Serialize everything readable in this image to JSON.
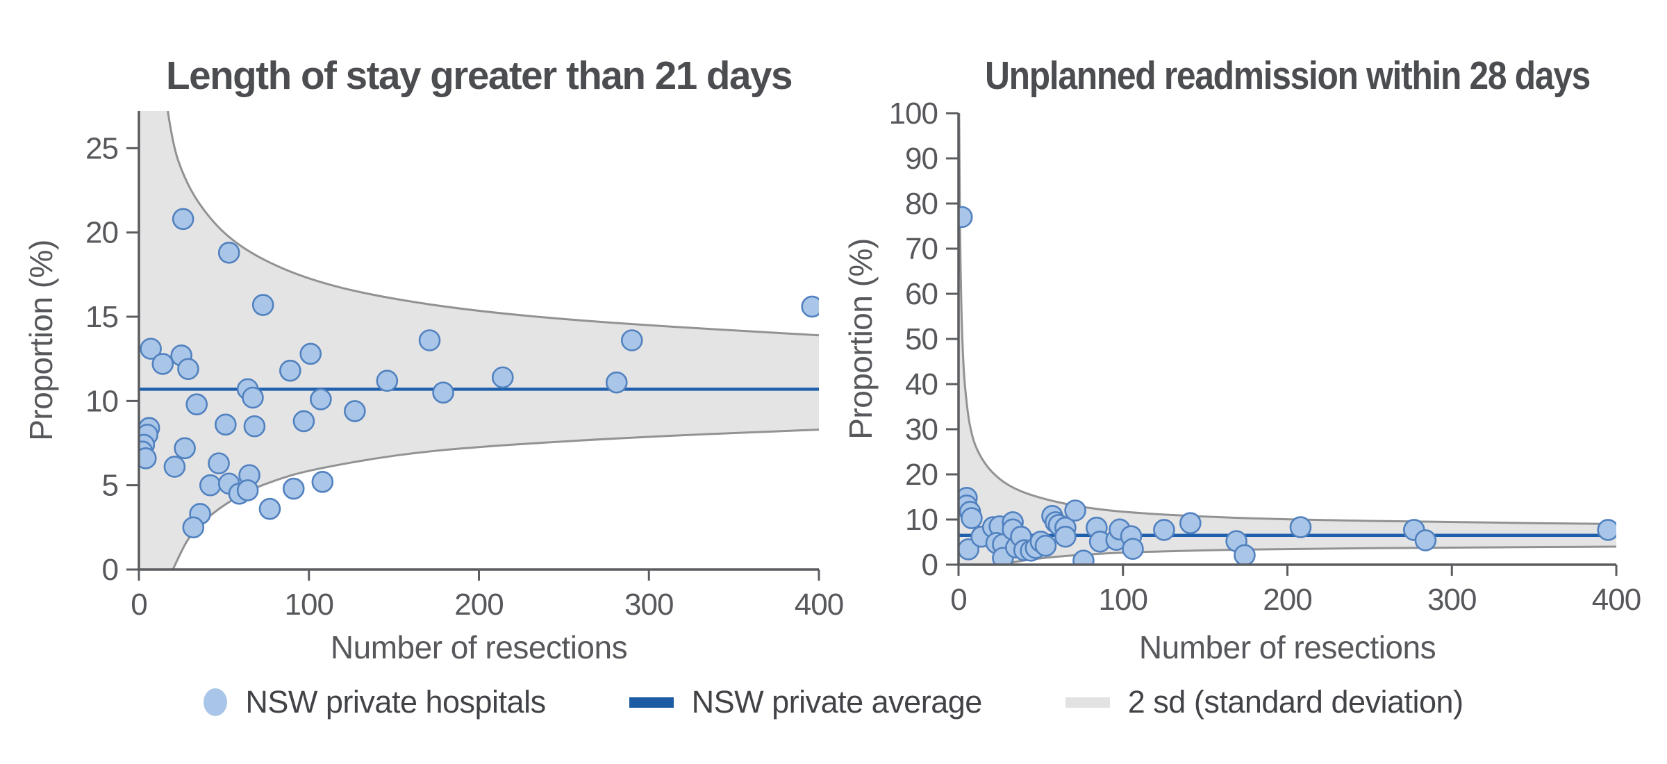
{
  "figure": {
    "kind": "funnel plots of hospital outcomes vs number of resections"
  },
  "colors": {
    "point_fill": "#a9c6e8",
    "point_stroke": "#5181bf",
    "avg_line": "#1e5fae",
    "band_fill": "#e4e4e5",
    "band_stroke": "#909294",
    "axis": "#5a5c5f",
    "title_text": "#4b4d50",
    "tick_text": "#56585b"
  },
  "legend": {
    "items": [
      {
        "swatch": "dot",
        "label": "NSW private hospitals"
      },
      {
        "swatch": "line",
        "label": "NSW private average"
      },
      {
        "swatch": "band",
        "label": "2 sd (standard deviation)"
      }
    ]
  },
  "chart_data": [
    {
      "type": "scatter",
      "id": "los-gt-21-days",
      "title": "Length of stay greater than 21 days",
      "xlabel": "Number of resections",
      "ylabel": "Proportion (%)",
      "xlim": [
        0,
        400
      ],
      "ylim": [
        0,
        27.2
      ],
      "xticks": [
        0,
        100,
        200,
        300,
        400
      ],
      "yticks": [
        0,
        5,
        10,
        15,
        20,
        25
      ],
      "average": 10.7,
      "points": [
        [
          26,
          20.8
        ],
        [
          53,
          18.8
        ],
        [
          73,
          15.7
        ],
        [
          396,
          15.6
        ],
        [
          7,
          13.1
        ],
        [
          14,
          12.2
        ],
        [
          25,
          12.7
        ],
        [
          29,
          11.9
        ],
        [
          101,
          12.8
        ],
        [
          89,
          11.8
        ],
        [
          171,
          13.6
        ],
        [
          290,
          13.6
        ],
        [
          146,
          11.2
        ],
        [
          179,
          10.5
        ],
        [
          214,
          11.4
        ],
        [
          281,
          11.1
        ],
        [
          127,
          9.4
        ],
        [
          64,
          10.7
        ],
        [
          67,
          10.2
        ],
        [
          34,
          9.8
        ],
        [
          107,
          10.1
        ],
        [
          51,
          8.6
        ],
        [
          68,
          8.5
        ],
        [
          97,
          8.8
        ],
        [
          6,
          8.4
        ],
        [
          5,
          8.0
        ],
        [
          3,
          7.4
        ],
        [
          2,
          7.0
        ],
        [
          4,
          6.6
        ],
        [
          27,
          7.2
        ],
        [
          21,
          6.1
        ],
        [
          47,
          6.3
        ],
        [
          65,
          5.6
        ],
        [
          42,
          5.0
        ],
        [
          53,
          5.1
        ],
        [
          59,
          4.5
        ],
        [
          64,
          4.7
        ],
        [
          91,
          4.8
        ],
        [
          108,
          5.2
        ],
        [
          77,
          3.6
        ],
        [
          36,
          3.3
        ],
        [
          32,
          2.5
        ]
      ],
      "band_upper": [
        [
          17,
          27.2
        ],
        [
          20,
          25.2
        ],
        [
          26,
          23.4
        ],
        [
          35,
          21.7
        ],
        [
          50,
          19.9
        ],
        [
          70,
          18.5
        ],
        [
          100,
          17.2
        ],
        [
          140,
          16.2
        ],
        [
          200,
          15.3
        ],
        [
          280,
          14.6
        ],
        [
          400,
          13.9
        ]
      ],
      "band_lower": [
        [
          20,
          0
        ],
        [
          25,
          1.1
        ],
        [
          30,
          2.0
        ],
        [
          40,
          3.1
        ],
        [
          60,
          4.5
        ],
        [
          80,
          5.3
        ],
        [
          100,
          5.9
        ],
        [
          150,
          6.8
        ],
        [
          200,
          7.3
        ],
        [
          300,
          7.9
        ],
        [
          400,
          8.3
        ]
      ]
    },
    {
      "type": "scatter",
      "id": "readmission-28-days",
      "title": "Unplanned readmission within 28 days",
      "xlabel": "Number of resections",
      "ylabel": "Proportion (%)",
      "xlim": [
        0,
        400
      ],
      "ylim": [
        0,
        100
      ],
      "xticks": [
        0,
        100,
        200,
        300,
        400
      ],
      "yticks": [
        0,
        10,
        20,
        30,
        40,
        50,
        60,
        70,
        80,
        90,
        100
      ],
      "average": 6.5,
      "points": [
        [
          2,
          77
        ],
        [
          5,
          14.8
        ],
        [
          5,
          13.1
        ],
        [
          7,
          11.7
        ],
        [
          8,
          10.3
        ],
        [
          6,
          3.4
        ],
        [
          14,
          6.2
        ],
        [
          21,
          8.3
        ],
        [
          25,
          8.5
        ],
        [
          23,
          4.8
        ],
        [
          27,
          4.5
        ],
        [
          27,
          1.5
        ],
        [
          33,
          9.4
        ],
        [
          33,
          7.8
        ],
        [
          35,
          3.8
        ],
        [
          38,
          6.2
        ],
        [
          40,
          3.2
        ],
        [
          44,
          3.1
        ],
        [
          47,
          3.7
        ],
        [
          50,
          5.1
        ],
        [
          53,
          4.2
        ],
        [
          57,
          10.8
        ],
        [
          59,
          9.4
        ],
        [
          61,
          8.8
        ],
        [
          65,
          8.2
        ],
        [
          65,
          6.2
        ],
        [
          71,
          12.0
        ],
        [
          76,
          0.9
        ],
        [
          84,
          8.2
        ],
        [
          86,
          5.1
        ],
        [
          96,
          5.5
        ],
        [
          98,
          7.8
        ],
        [
          105,
          6.3
        ],
        [
          106,
          3.5
        ],
        [
          125,
          7.7
        ],
        [
          141,
          9.2
        ],
        [
          169,
          5.2
        ],
        [
          174,
          2.1
        ],
        [
          208,
          8.3
        ],
        [
          277,
          7.7
        ],
        [
          284,
          5.4
        ],
        [
          395,
          7.7
        ]
      ],
      "band_upper": [
        [
          0.35,
          100
        ],
        [
          0.7,
          82
        ],
        [
          1,
          71
        ],
        [
          1.5,
          61
        ],
        [
          2,
          53
        ],
        [
          3,
          44
        ],
        [
          4,
          39
        ],
        [
          6,
          32.5
        ],
        [
          8,
          29
        ],
        [
          10,
          26.5
        ],
        [
          14,
          23.5
        ],
        [
          20,
          20.5
        ],
        [
          30,
          17.5
        ],
        [
          45,
          15.2
        ],
        [
          70,
          13.0
        ],
        [
          100,
          11.6
        ],
        [
          150,
          10.6
        ],
        [
          200,
          10.0
        ],
        [
          300,
          9.4
        ],
        [
          400,
          9.0
        ]
      ],
      "band_lower": [
        [
          25,
          0
        ],
        [
          40,
          1.0
        ],
        [
          60,
          1.8
        ],
        [
          80,
          2.3
        ],
        [
          100,
          2.7
        ],
        [
          150,
          3.2
        ],
        [
          200,
          3.5
        ],
        [
          300,
          3.8
        ],
        [
          400,
          4.0
        ]
      ]
    }
  ]
}
